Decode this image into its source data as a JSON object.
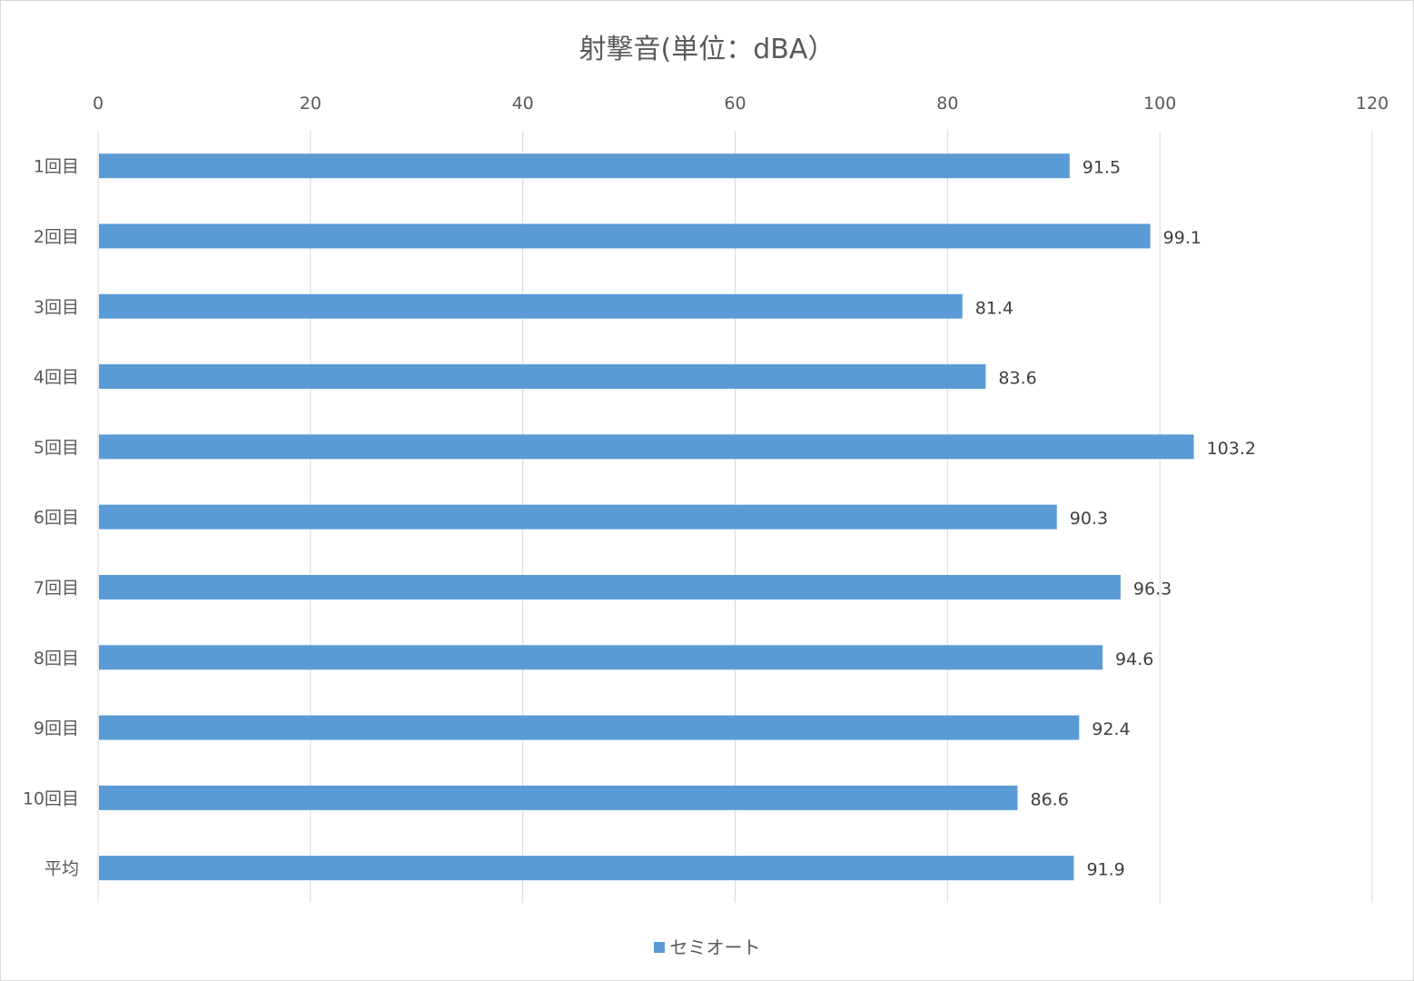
{
  "chart_data": {
    "type": "bar",
    "orientation": "horizontal",
    "title": "射撃音(単位：dBA）",
    "categories": [
      "1回目",
      "2回目",
      "3回目",
      "4回目",
      "5回目",
      "6回目",
      "7回目",
      "8回目",
      "9回目",
      "10回目",
      "平均"
    ],
    "series": [
      {
        "name": "セミオート",
        "values": [
          91.5,
          99.1,
          81.4,
          83.6,
          103.2,
          90.3,
          96.3,
          94.6,
          92.4,
          86.6,
          91.9
        ],
        "color": "#5b9bd5"
      }
    ],
    "value_axis": {
      "position": "top",
      "range": [
        0,
        120
      ],
      "ticks": [
        0,
        20,
        40,
        60,
        80,
        100,
        120
      ]
    },
    "gridlines": true,
    "data_labels": true,
    "legend": "bottom"
  }
}
